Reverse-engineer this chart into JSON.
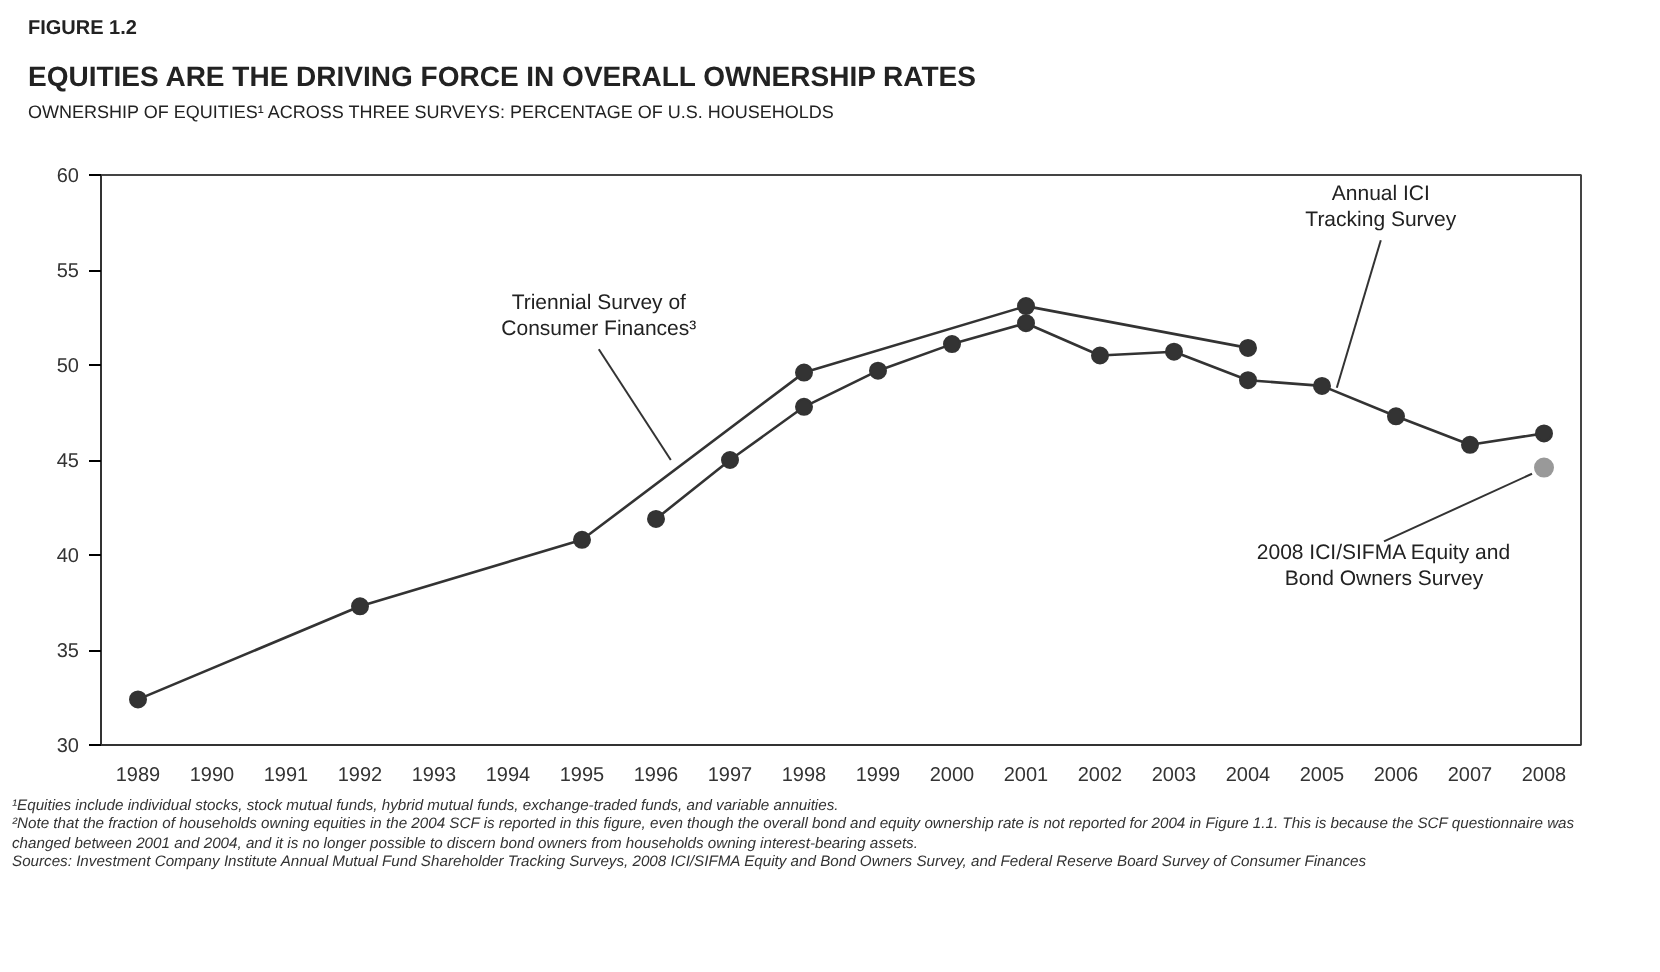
{
  "chart_data": {
    "type": "line",
    "title": "EQUITIES ARE THE DRIVING FORCE IN OVERALL OWNERSHIP RATES",
    "subtitle": "OWNERSHIP OF EQUITIES¹ ACROSS THREE SURVEYS: PERCENTAGE OF U.S. HOUSEHOLDS",
    "series": [
      {
        "color": "#333333",
        "x": [
          1989,
          1992,
          1995,
          1998,
          2001,
          2004
        ],
        "values": [
          32.4,
          37.3,
          40.8,
          49.6,
          53.1,
          50.9
        ]
      },
      {
        "color": "#333333",
        "x": [
          1996,
          1997,
          1998,
          1999,
          2000,
          2001,
          2002,
          2003,
          2004,
          2005,
          2006,
          2007,
          2008
        ],
        "values": [
          41.9,
          45.0,
          47.8,
          49.7,
          51.1,
          52.2,
          50.5,
          50.7,
          49.2,
          48.9,
          47.3,
          45.8,
          46.4
        ]
      },
      {
        "type": "scatter",
        "color": "#999999",
        "x": [
          2008
        ],
        "values": [
          44.6
        ]
      }
    ],
    "xlim": [
      1988.5,
      2008.5
    ],
    "ylim": [
      30,
      60
    ],
    "xticks": [
      1989,
      1990,
      1991,
      1992,
      1993,
      1994,
      1995,
      1996,
      1997,
      1998,
      1999,
      2000,
      2001,
      2002,
      2003,
      2004,
      2005,
      2006,
      2007,
      2008
    ],
    "yticks": [
      30,
      35,
      40,
      45,
      50,
      55,
      60
    ],
    "grid": false,
    "marker": "circle",
    "line_style": "solid",
    "annotations": [
      "FIGURE 1.2",
      {
        "text": "Triennial Survey of Consumer Finances³",
        "x": 1996.2,
        "y": 45.0
      },
      {
        "text": "Annual ICI Tracking Survey",
        "x": 2005.2,
        "y": 48.8
      },
      {
        "text": "2008 ICI/SIFMA Equity and Bond Owners Survey",
        "x": 2008,
        "y": 44.6
      },
      "¹Equities include individual stocks, stock mutual funds, hybrid mutual funds, exchange-traded funds, and variable annuities.",
      "²Note that the fraction of households owning equities in the 2004 SCF is reported in this figure, even though the overall bond and equity ownership rate is not reported for 2004 in Figure 1.1. This is because the SCF questionnaire was changed between 2001 and 2004, and it is no longer possible to discern bond owners from households owning interest-bearing assets.",
      "Sources: Investment Company Institute Annual Mutual Fund Shareholder Tracking Surveys, 2008 ICI/SIFMA Equity and Bond Owners Survey, and Federal Reserve Board Survey of Consumer Finances"
    ]
  }
}
